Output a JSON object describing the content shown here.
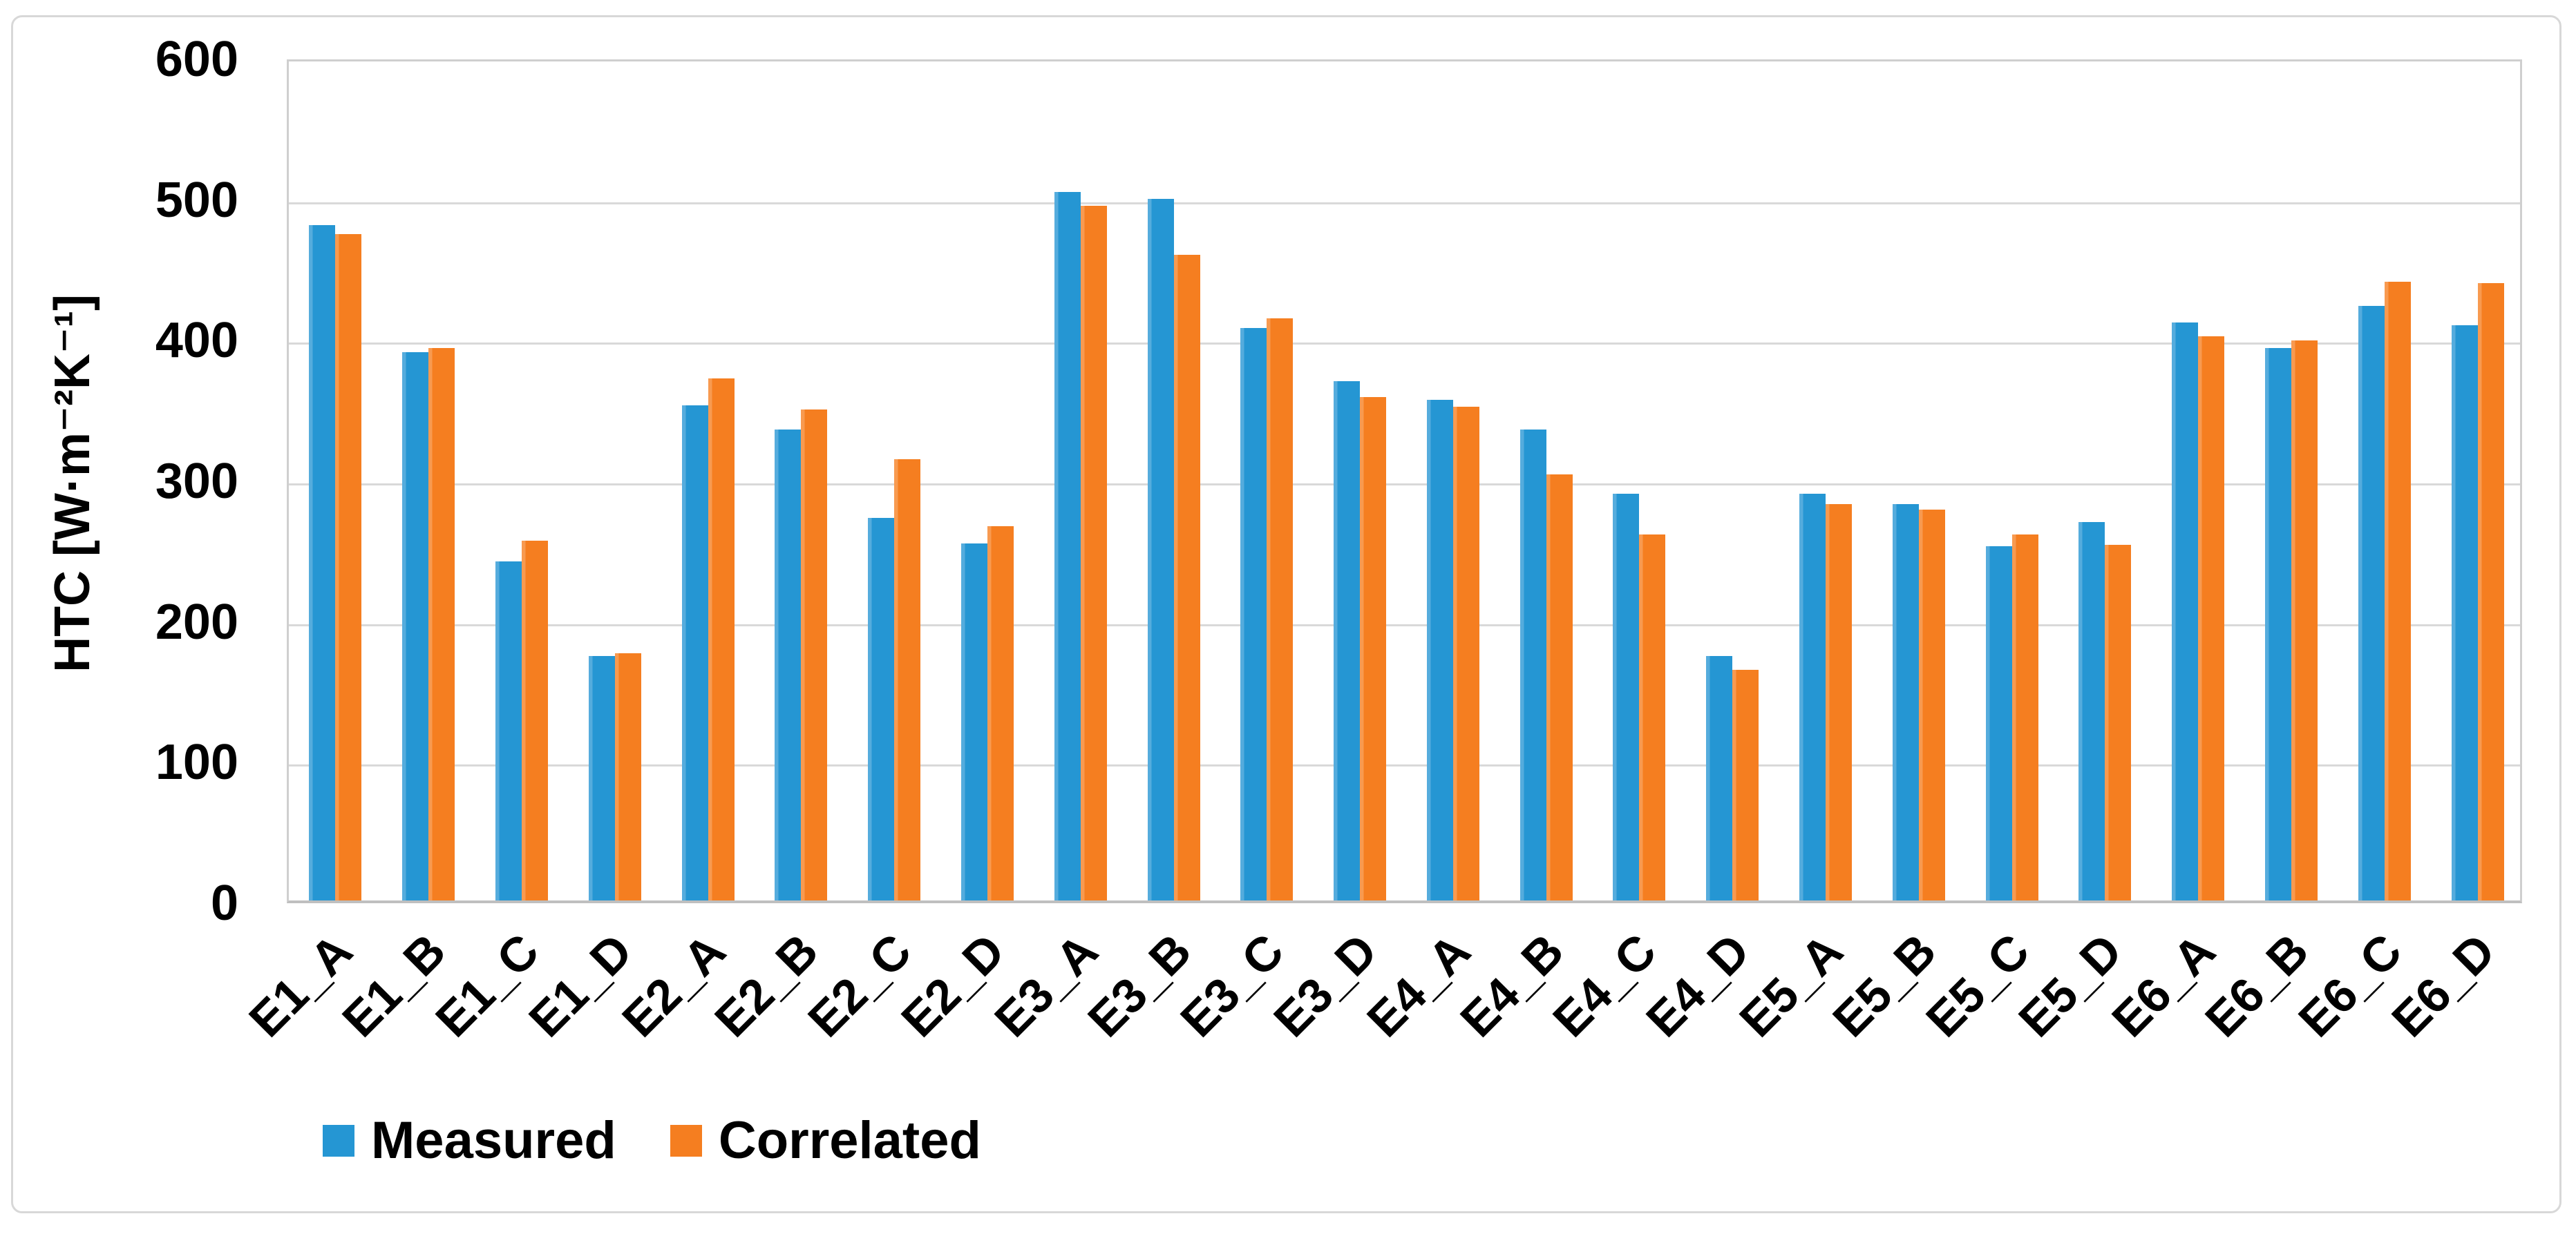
{
  "figure": {
    "background_color": "#ffffff",
    "border_color": "#d8d8d8"
  },
  "chart_data": {
    "type": "bar",
    "title": "",
    "xlabel": "",
    "ylabel": "HTC [W·m⁻²K⁻¹]",
    "ylim": [
      0,
      600
    ],
    "yticks": [
      0,
      100,
      200,
      300,
      400,
      500,
      600
    ],
    "grid": true,
    "gridline_color": "#d9d9d9",
    "axis_color": "#bfbfbf",
    "legend_position": "bottom-left",
    "categories": [
      "E1_A",
      "E1_B",
      "E1_C",
      "E1_D",
      "E2_A",
      "E2_B",
      "E2_C",
      "E2_D",
      "E3_A",
      "E3_B",
      "E3_C",
      "E3_D",
      "E4_A",
      "E4_B",
      "E4_C",
      "E4_D",
      "E5_A",
      "E5_B",
      "E5_C",
      "E5_D",
      "E6_A",
      "E6_B",
      "E6_C",
      "E6_D"
    ],
    "series": [
      {
        "name": "Measured",
        "color": "#2596d3",
        "color_light": "#55acdd",
        "values": [
          480,
          390,
          241,
          174,
          352,
          335,
          272,
          254,
          504,
          499,
          407,
          369,
          356,
          335,
          289,
          174,
          289,
          282,
          252,
          269,
          411,
          393,
          423,
          409
        ]
      },
      {
        "name": "Correlated",
        "color": "#f57e20",
        "color_light": "#f89a50",
        "values": [
          474,
          393,
          256,
          176,
          371,
          349,
          314,
          266,
          494,
          459,
          414,
          358,
          351,
          303,
          260,
          164,
          282,
          278,
          260,
          253,
          401,
          398,
          440,
          439
        ]
      }
    ]
  }
}
